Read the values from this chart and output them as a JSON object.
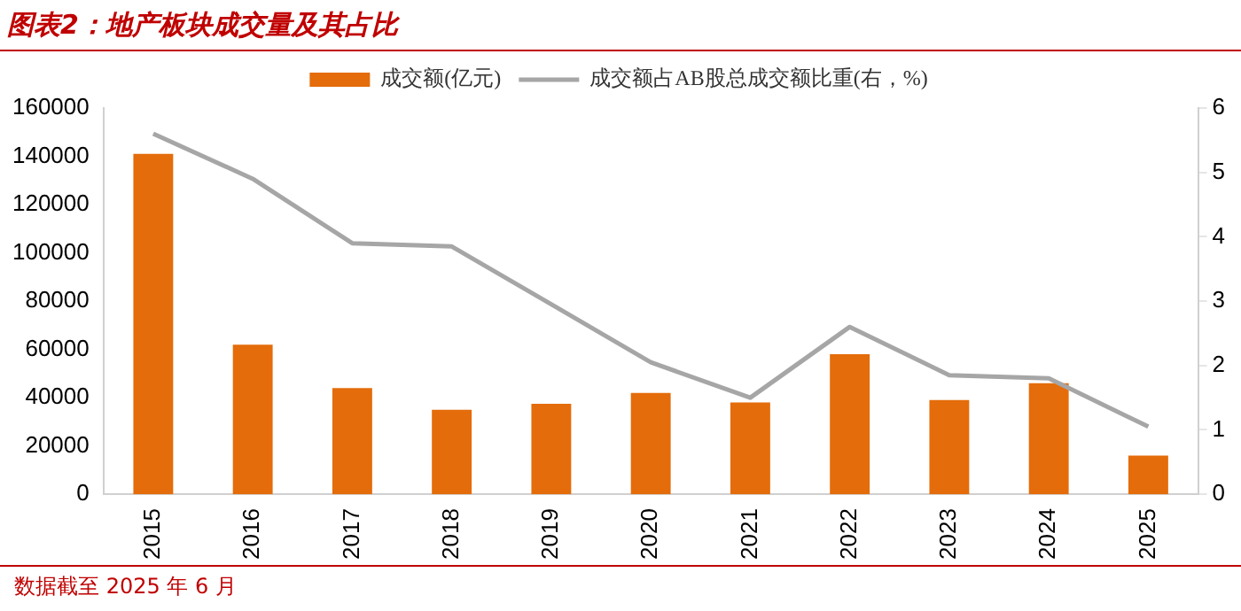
{
  "chart_data": {
    "type": "bar",
    "title": "图表2：地产板块成交量及其占比",
    "categories": [
      "2015",
      "2016",
      "2017",
      "2018",
      "2019",
      "2020",
      "2021",
      "2022",
      "2023",
      "2024",
      "2025"
    ],
    "series": [
      {
        "name": "成交额(亿元)",
        "color": "#e46c0a",
        "values": [
          141000,
          62000,
          44000,
          35000,
          37500,
          42000,
          38000,
          58000,
          39000,
          46000,
          16000
        ]
      },
      {
        "name": "成交额占AB股总成交额比重(右，%)",
        "type": "line",
        "axis": "y2",
        "color": "#a6a6a6",
        "marker": "none",
        "values": [
          5.6,
          4.9,
          3.9,
          3.85,
          2.95,
          2.05,
          1.5,
          2.6,
          1.85,
          1.8,
          1.05
        ]
      }
    ],
    "ylim": [
      0,
      160000
    ],
    "yticks": [
      0,
      20000,
      40000,
      60000,
      80000,
      100000,
      120000,
      140000,
      160000
    ],
    "y2lim": [
      0,
      6
    ],
    "y2ticks": [
      0,
      1,
      2,
      3,
      4,
      5,
      6
    ],
    "grid": false,
    "legend": "top",
    "annotations": [
      "数据截至 2025 年 6 月"
    ]
  }
}
